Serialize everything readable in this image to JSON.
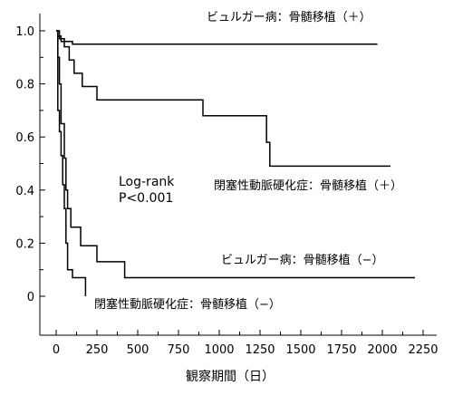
{
  "chart_data": {
    "type": "line",
    "title": "",
    "xlabel": "観察期間（日）",
    "ylabel": "",
    "xlim": [
      0,
      2250
    ],
    "ylim": [
      0,
      1.0
    ],
    "grid": false,
    "x_ticks": [
      "0",
      "250",
      "500",
      "750",
      "1000",
      "1250",
      "1500",
      "1750",
      "2000",
      "2250"
    ],
    "y_ticks": [
      "0",
      "0.2",
      "0.4",
      "0.6",
      "0.8",
      "1.0"
    ],
    "annotations": [
      {
        "name": "log-rank",
        "lines": [
          "Log-rank",
          "P<0.001"
        ]
      }
    ],
    "series": [
      {
        "name": "ビュルガー病：骨髄移植（＋）",
        "x": [
          0,
          10,
          10,
          30,
          30,
          100,
          100,
          1970
        ],
        "y": [
          1.0,
          1.0,
          0.98,
          0.98,
          0.96,
          0.96,
          0.95,
          0.95
        ]
      },
      {
        "name": "閉塞性動脈硬化症：骨髄移植（＋）",
        "x": [
          0,
          20,
          20,
          50,
          50,
          80,
          80,
          110,
          110,
          160,
          160,
          250,
          250,
          900,
          900,
          1290,
          1290,
          1310,
          1310,
          2050
        ],
        "y": [
          1.0,
          1.0,
          0.97,
          0.97,
          0.94,
          0.94,
          0.89,
          0.89,
          0.84,
          0.84,
          0.79,
          0.79,
          0.74,
          0.74,
          0.68,
          0.68,
          0.58,
          0.58,
          0.49,
          0.49
        ]
      },
      {
        "name": "ビュルガー病：骨髄移植（−）",
        "x": [
          0,
          10,
          10,
          20,
          20,
          30,
          30,
          50,
          50,
          60,
          60,
          70,
          70,
          90,
          90,
          150,
          150,
          250,
          250,
          420,
          420,
          2200
        ],
        "y": [
          1.0,
          1.0,
          0.9,
          0.9,
          0.8,
          0.8,
          0.65,
          0.65,
          0.52,
          0.52,
          0.4,
          0.4,
          0.33,
          0.33,
          0.26,
          0.26,
          0.19,
          0.19,
          0.13,
          0.13,
          0.07,
          0.07
        ]
      },
      {
        "name": "閉塞性動脈硬化症：骨髄移植（−）",
        "x": [
          0,
          10,
          10,
          20,
          20,
          30,
          30,
          40,
          40,
          50,
          50,
          60,
          60,
          70,
          70,
          100,
          100,
          180,
          180
        ],
        "y": [
          1.0,
          1.0,
          0.7,
          0.7,
          0.62,
          0.62,
          0.53,
          0.53,
          0.42,
          0.42,
          0.33,
          0.33,
          0.2,
          0.2,
          0.1,
          0.1,
          0.07,
          0.07,
          0.0
        ]
      }
    ]
  }
}
